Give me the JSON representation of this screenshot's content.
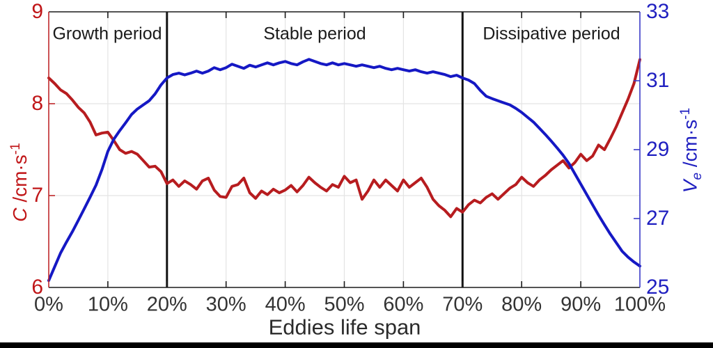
{
  "chart_data": {
    "type": "line",
    "xlabel": "Eddies life span",
    "grid": true,
    "xlim": [
      0,
      100
    ],
    "x_tick_values": [
      0,
      10,
      20,
      30,
      40,
      50,
      60,
      70,
      80,
      90,
      100
    ],
    "x_tick_labels": [
      "0%",
      "10%",
      "20%",
      "30%",
      "40%",
      "50%",
      "60%",
      "70%",
      "80%",
      "90%",
      "100%"
    ],
    "left_axis": {
      "symbol": "C",
      "unit": " /cm·s",
      "exponent": "-1",
      "lim": [
        6,
        9
      ],
      "ticks": [
        9,
        8,
        7,
        6
      ],
      "text_color": "#c01618",
      "line_color": "#c0282b"
    },
    "right_axis": {
      "symbol": "V",
      "subscript": "e",
      "unit": " /cm·s",
      "exponent": "-1",
      "lim": [
        25,
        33
      ],
      "ticks": [
        33,
        31,
        29,
        27,
        25
      ],
      "text_color": "#1f1fc0",
      "line_color": "#3b3bc8"
    },
    "dividers_x": [
      20,
      70
    ],
    "divider_color": "#111111",
    "annotations": [
      {
        "text": "Growth period",
        "x_percent": 10
      },
      {
        "text": "Stable period",
        "x_percent": 45
      },
      {
        "text": "Dissipative period",
        "x_percent": 85
      }
    ],
    "series": [
      {
        "name": "C",
        "axis": "left",
        "color": "#b71c1f",
        "x": [
          0,
          1,
          2,
          3,
          4,
          5,
          6,
          7,
          8,
          9,
          10,
          11,
          12,
          13,
          14,
          15,
          16,
          17,
          18,
          19,
          20,
          21,
          22,
          23,
          24,
          25,
          26,
          27,
          28,
          29,
          30,
          31,
          32,
          33,
          34,
          35,
          36,
          37,
          38,
          39,
          40,
          41,
          42,
          43,
          44,
          45,
          46,
          47,
          48,
          49,
          50,
          51,
          52,
          53,
          54,
          55,
          56,
          57,
          58,
          59,
          60,
          61,
          62,
          63,
          64,
          65,
          66,
          67,
          68,
          69,
          70,
          71,
          72,
          73,
          74,
          75,
          76,
          77,
          78,
          79,
          80,
          81,
          82,
          83,
          84,
          85,
          86,
          87,
          88,
          89,
          90,
          91,
          92,
          93,
          94,
          95,
          96,
          97,
          98,
          99,
          100
        ],
        "values": [
          8.28,
          8.22,
          8.15,
          8.11,
          8.04,
          7.96,
          7.9,
          7.8,
          7.66,
          7.68,
          7.69,
          7.6,
          7.5,
          7.46,
          7.48,
          7.45,
          7.38,
          7.31,
          7.32,
          7.26,
          7.13,
          7.17,
          7.1,
          7.16,
          7.12,
          7.07,
          7.16,
          7.19,
          7.06,
          6.99,
          6.98,
          7.1,
          7.12,
          7.19,
          7.03,
          6.97,
          7.05,
          7.01,
          7.07,
          7.03,
          7.06,
          7.11,
          7.04,
          7.11,
          7.2,
          7.14,
          7.09,
          7.05,
          7.12,
          7.09,
          7.21,
          7.14,
          7.17,
          6.96,
          7.05,
          7.17,
          7.09,
          7.17,
          7.11,
          7.05,
          7.17,
          7.09,
          7.14,
          7.19,
          7.09,
          6.96,
          6.89,
          6.84,
          6.77,
          6.86,
          6.82,
          6.9,
          6.95,
          6.92,
          6.98,
          7.02,
          6.96,
          7.02,
          7.08,
          7.12,
          7.2,
          7.14,
          7.1,
          7.17,
          7.22,
          7.28,
          7.33,
          7.38,
          7.3,
          7.36,
          7.45,
          7.38,
          7.43,
          7.55,
          7.5,
          7.62,
          7.75,
          7.9,
          8.05,
          8.22,
          8.48
        ]
      },
      {
        "name": "Ve",
        "axis": "right",
        "color": "#1518c4",
        "x": [
          0,
          1,
          2,
          3,
          4,
          5,
          6,
          7,
          8,
          9,
          10,
          11,
          12,
          13,
          14,
          15,
          16,
          17,
          18,
          19,
          20,
          21,
          22,
          23,
          24,
          25,
          26,
          27,
          28,
          29,
          30,
          31,
          32,
          33,
          34,
          35,
          36,
          37,
          38,
          39,
          40,
          41,
          42,
          43,
          44,
          45,
          46,
          47,
          48,
          49,
          50,
          51,
          52,
          53,
          54,
          55,
          56,
          57,
          58,
          59,
          60,
          61,
          62,
          63,
          64,
          65,
          66,
          67,
          68,
          69,
          70,
          71,
          72,
          73,
          74,
          75,
          76,
          77,
          78,
          79,
          80,
          81,
          82,
          83,
          84,
          85,
          86,
          87,
          88,
          89,
          90,
          91,
          92,
          93,
          94,
          95,
          96,
          97,
          98,
          99,
          100
        ],
        "values": [
          25.2,
          25.6,
          26.0,
          26.32,
          26.62,
          26.95,
          27.28,
          27.62,
          27.97,
          28.42,
          28.95,
          29.3,
          29.55,
          29.78,
          30.02,
          30.18,
          30.3,
          30.42,
          30.62,
          30.88,
          31.08,
          31.18,
          31.22,
          31.17,
          31.22,
          31.28,
          31.22,
          31.28,
          31.38,
          31.32,
          31.38,
          31.48,
          31.42,
          31.36,
          31.45,
          31.4,
          31.46,
          31.52,
          31.46,
          31.52,
          31.56,
          31.5,
          31.46,
          31.55,
          31.62,
          31.56,
          31.5,
          31.46,
          31.52,
          31.46,
          31.5,
          31.46,
          31.42,
          31.46,
          31.42,
          31.38,
          31.42,
          31.36,
          31.32,
          31.36,
          31.32,
          31.28,
          31.32,
          31.26,
          31.22,
          31.26,
          31.22,
          31.18,
          31.12,
          31.16,
          31.08,
          31.02,
          30.92,
          30.72,
          30.55,
          30.48,
          30.42,
          30.36,
          30.3,
          30.2,
          30.08,
          29.94,
          29.8,
          29.62,
          29.44,
          29.25,
          29.05,
          28.84,
          28.6,
          28.3,
          28.0,
          27.7,
          27.4,
          27.1,
          26.82,
          26.55,
          26.3,
          26.05,
          25.88,
          25.74,
          25.62
        ]
      }
    ],
    "layout_hint": {
      "grid_color": "#e4e4e4",
      "box_color": "#1a1a1a",
      "legend": "none"
    }
  }
}
